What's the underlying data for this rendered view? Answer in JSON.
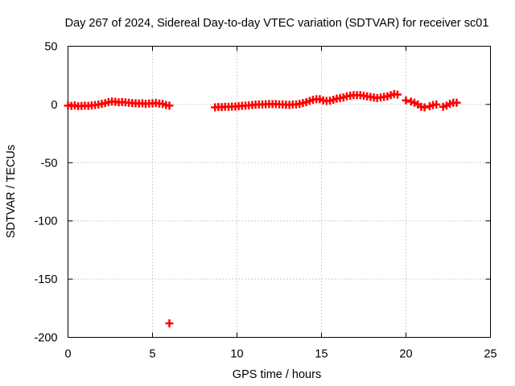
{
  "chart_data": {
    "type": "scatter",
    "title": "Day 267 of 2024, Sidereal Day-to-day VTEC variation (SDTVAR) for receiver sc01",
    "xlabel": "GPS time / hours",
    "ylabel": "SDTVAR / TECUs",
    "xlim": [
      0,
      25
    ],
    "ylim": [
      -200,
      50
    ],
    "xticks": [
      0,
      5,
      10,
      15,
      20,
      25
    ],
    "yticks": [
      -200,
      -150,
      -100,
      -50,
      0,
      50
    ],
    "grid": true,
    "marker": "plus",
    "series": [
      {
        "name": "SDTVAR",
        "color": "#ff0000",
        "points": [
          [
            0.0,
            -1.0
          ],
          [
            0.2,
            -1.2
          ],
          [
            0.4,
            -0.8
          ],
          [
            0.6,
            -1.5
          ],
          [
            0.8,
            -1.3
          ],
          [
            1.0,
            -1.0
          ],
          [
            1.2,
            -1.2
          ],
          [
            1.4,
            -0.8
          ],
          [
            1.6,
            -0.5
          ],
          [
            1.8,
            0.0
          ],
          [
            2.0,
            0.5
          ],
          [
            2.2,
            1.2
          ],
          [
            2.4,
            2.0
          ],
          [
            2.6,
            2.5
          ],
          [
            2.8,
            2.3
          ],
          [
            3.0,
            1.8
          ],
          [
            3.2,
            2.0
          ],
          [
            3.4,
            1.8
          ],
          [
            3.6,
            1.5
          ],
          [
            3.8,
            1.2
          ],
          [
            4.0,
            1.0
          ],
          [
            4.2,
            0.8
          ],
          [
            4.4,
            1.0
          ],
          [
            4.6,
            0.5
          ],
          [
            4.8,
            0.8
          ],
          [
            5.0,
            1.0
          ],
          [
            5.2,
            1.2
          ],
          [
            5.4,
            0.8
          ],
          [
            5.6,
            0.5
          ],
          [
            5.8,
            -0.5
          ],
          [
            6.0,
            -1.0
          ],
          [
            6.0,
            -188.0
          ],
          [
            8.7,
            -2.5
          ],
          [
            8.9,
            -2.2
          ],
          [
            9.1,
            -2.3
          ],
          [
            9.3,
            -2.0
          ],
          [
            9.5,
            -2.0
          ],
          [
            9.7,
            -1.8
          ],
          [
            9.9,
            -1.8
          ],
          [
            10.1,
            -1.5
          ],
          [
            10.3,
            -1.2
          ],
          [
            10.5,
            -1.0
          ],
          [
            10.7,
            -0.8
          ],
          [
            10.9,
            -0.5
          ],
          [
            11.1,
            -0.2
          ],
          [
            11.3,
            0.0
          ],
          [
            11.5,
            0.0
          ],
          [
            11.7,
            0.2
          ],
          [
            11.9,
            0.3
          ],
          [
            12.1,
            0.3
          ],
          [
            12.3,
            0.3
          ],
          [
            12.5,
            0.1
          ],
          [
            12.7,
            0.0
          ],
          [
            12.9,
            -0.2
          ],
          [
            13.1,
            -0.3
          ],
          [
            13.3,
            0.0
          ],
          [
            13.5,
            0.0
          ],
          [
            13.7,
            0.5
          ],
          [
            13.9,
            1.2
          ],
          [
            14.1,
            2.0
          ],
          [
            14.3,
            3.0
          ],
          [
            14.5,
            4.0
          ],
          [
            14.7,
            4.5
          ],
          [
            14.9,
            4.5
          ],
          [
            15.1,
            3.5
          ],
          [
            15.3,
            3.0
          ],
          [
            15.5,
            3.2
          ],
          [
            15.7,
            4.0
          ],
          [
            15.9,
            5.0
          ],
          [
            16.1,
            5.5
          ],
          [
            16.3,
            6.0
          ],
          [
            16.5,
            7.0
          ],
          [
            16.7,
            7.5
          ],
          [
            16.9,
            8.0
          ],
          [
            17.1,
            8.0
          ],
          [
            17.3,
            8.0
          ],
          [
            17.5,
            7.5
          ],
          [
            17.7,
            7.0
          ],
          [
            17.9,
            6.5
          ],
          [
            18.1,
            6.0
          ],
          [
            18.3,
            5.5
          ],
          [
            18.5,
            6.0
          ],
          [
            18.7,
            6.5
          ],
          [
            18.9,
            7.0
          ],
          [
            19.1,
            8.0
          ],
          [
            19.3,
            9.0
          ],
          [
            19.5,
            8.5
          ],
          [
            20.0,
            3.5
          ],
          [
            20.3,
            2.5
          ],
          [
            20.5,
            1.5
          ],
          [
            20.7,
            0.0
          ],
          [
            20.9,
            -2.0
          ],
          [
            21.1,
            -2.5
          ],
          [
            21.4,
            -1.5
          ],
          [
            21.6,
            -0.5
          ],
          [
            21.8,
            0.0
          ],
          [
            22.2,
            -2.0
          ],
          [
            22.4,
            -1.0
          ],
          [
            22.6,
            0.5
          ],
          [
            22.8,
            1.5
          ],
          [
            23.0,
            1.5
          ]
        ]
      }
    ]
  }
}
